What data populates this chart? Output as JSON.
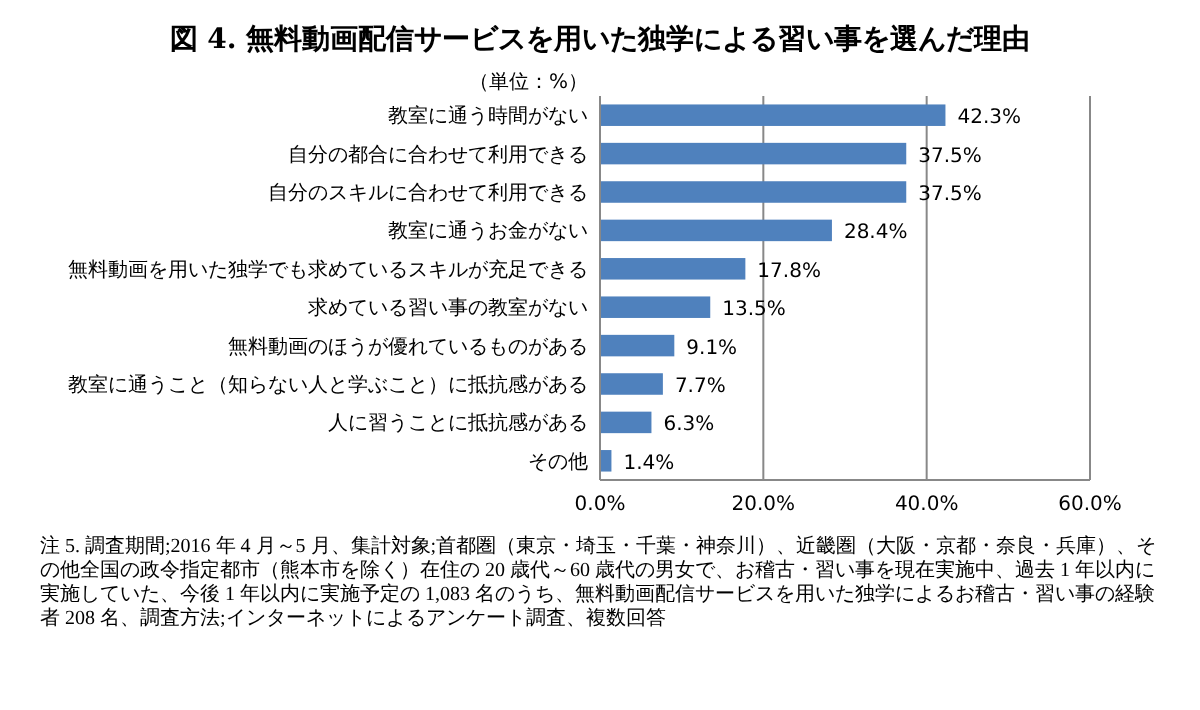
{
  "chart_data": {
    "type": "bar",
    "orientation": "horizontal",
    "title": "図 4. 無料動画配信サービスを用いた独学による習い事を選んだ理由",
    "categories": [
      "教室に通う時間がない",
      "自分の都合に合わせて利用できる",
      "自分のスキルに合わせて利用できる",
      "教室に通うお金がない",
      "無料動画を用いた独学でも求めているスキルが充足できる",
      "求めている習い事の教室がない",
      "無料動画のほうが優れているものがある",
      "教室に通うこと（知らない人と学ぶこと）に抵抗感がある",
      "人に習うことに抵抗感がある",
      "その他"
    ],
    "values": [
      42.3,
      37.5,
      37.5,
      28.4,
      17.8,
      13.5,
      9.1,
      7.7,
      6.3,
      1.4
    ],
    "value_labels": [
      "42.3%",
      "37.5%",
      "37.5%",
      "28.4%",
      "17.8%",
      "13.5%",
      "9.1%",
      "7.7%",
      "6.3%",
      "1.4%"
    ],
    "color": "#4f81bd",
    "xlim": [
      0,
      60
    ],
    "xticks": [
      {
        "value": 0,
        "label": "0.0%"
      },
      {
        "value": 20,
        "label": "20.0%"
      },
      {
        "value": 40,
        "label": "40.0%"
      },
      {
        "value": 60,
        "label": "60.0%"
      }
    ],
    "grid": "x",
    "annotations": [
      "（単位：%）",
      "注 5. 調査期間;2016 年 4 月～5 月、集計対象;首都圏（東京・埼玉・千葉・神奈川）、近畿圏（大阪・京都・奈良・兵庫）、その他全国の政令指定都市（熊本市を除く）在住の 20 歳代～60 歳代の男女で、お稽古・習い事を現在実施中、過去 1 年以内に実施していた、今後 1 年以内に実施予定の 1,083 名のうち、無料動画配信サービスを用いた独学によるお稽古・習い事の経験者 208 名、調査方法;インターネットによるアンケート調査、複数回答"
    ]
  }
}
